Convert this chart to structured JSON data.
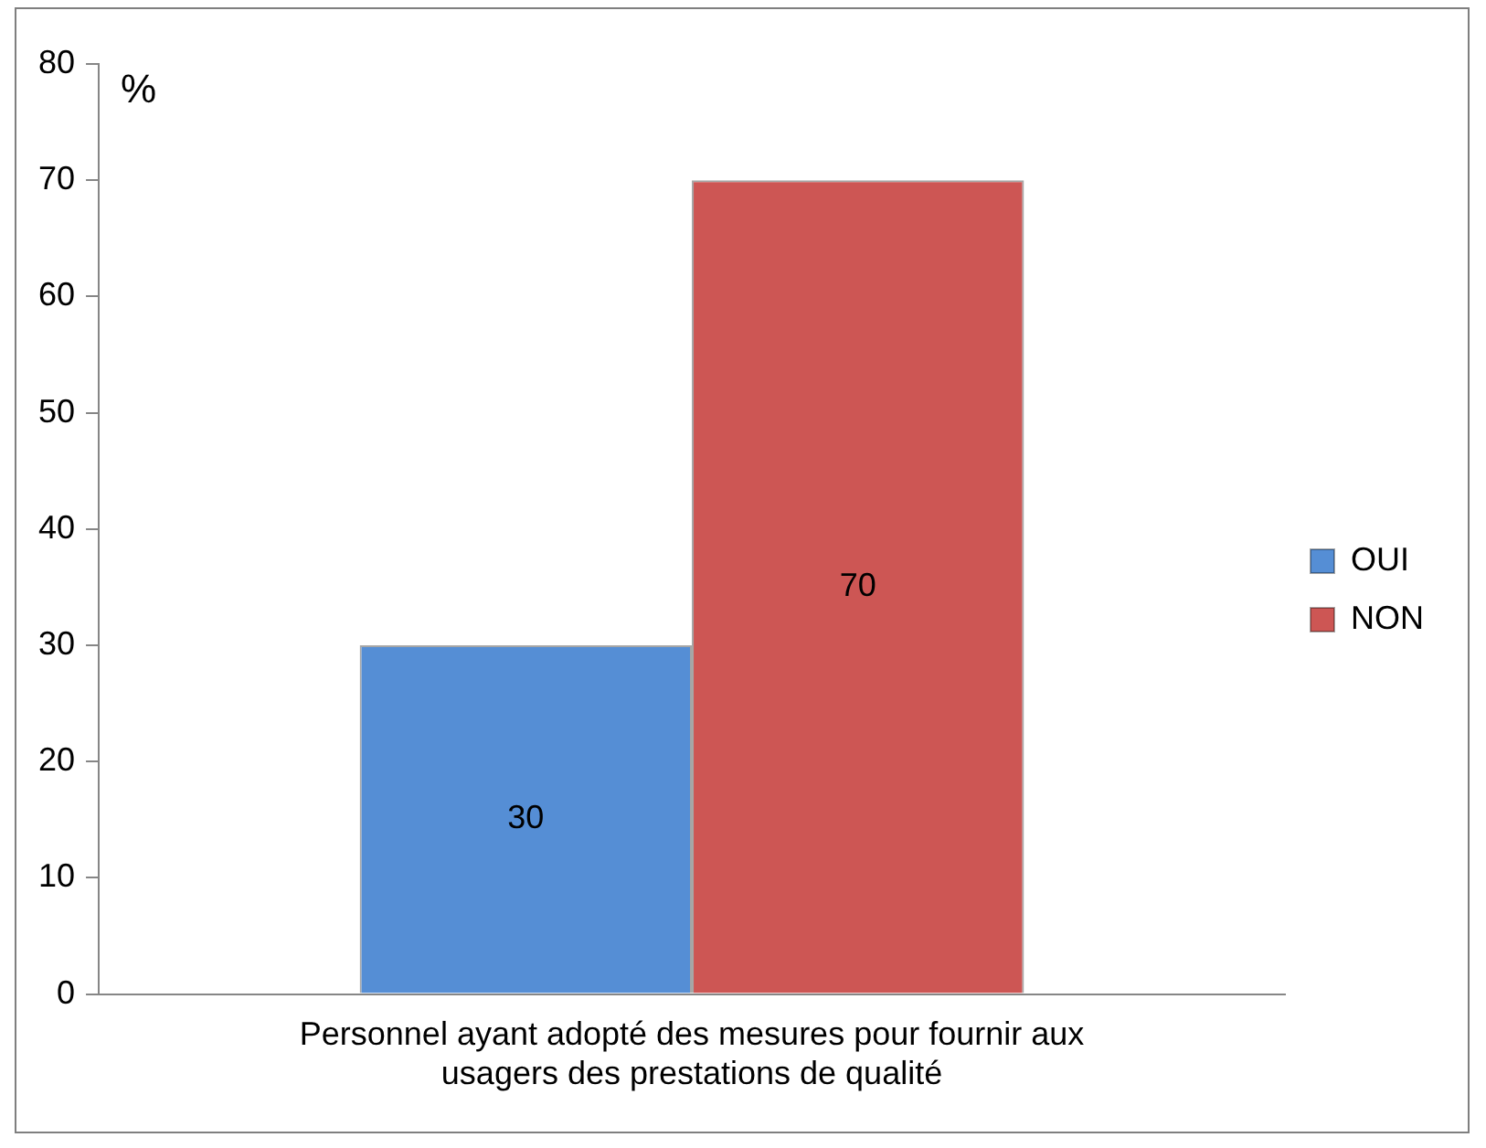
{
  "chart_data": {
    "type": "bar",
    "ylabel": "%",
    "categories": [
      "Personnel ayant adopté des mesures pour fournir aux usagers des prestations de qualité"
    ],
    "series": [
      {
        "name": "OUI",
        "color": "#558ed5",
        "values": [
          30
        ]
      },
      {
        "name": "NON",
        "color": "#cd5654",
        "values": [
          70
        ]
      }
    ],
    "ylim": [
      0,
      80
    ],
    "yticks": [
      0,
      10,
      20,
      30,
      40,
      50,
      60,
      70,
      80
    ],
    "grid": false,
    "legend": "right",
    "data_labels": true
  }
}
